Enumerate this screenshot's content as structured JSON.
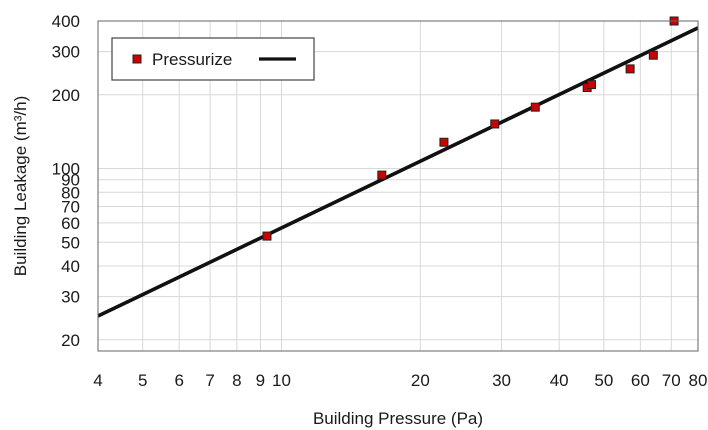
{
  "chart_data": {
    "type": "scatter",
    "title": "",
    "xlabel": "Building Pressure (Pa)",
    "ylabel": "Building Leakage (m³/h)",
    "xscale": "log",
    "yscale": "log",
    "xlim": [
      4,
      80
    ],
    "ylim": [
      18,
      400
    ],
    "grid": true,
    "legend": {
      "placement": "top-left",
      "label": "Pressurize"
    },
    "x_ticks": [
      {
        "value": 4,
        "label": "4"
      },
      {
        "value": 5,
        "label": "5"
      },
      {
        "value": 6,
        "label": "6"
      },
      {
        "value": 7,
        "label": "7"
      },
      {
        "value": 8,
        "label": "8"
      },
      {
        "value": 9,
        "label": "9"
      },
      {
        "value": 10,
        "label": "10"
      },
      {
        "value": 20,
        "label": "20"
      },
      {
        "value": 30,
        "label": "30"
      },
      {
        "value": 40,
        "label": "40"
      },
      {
        "value": 50,
        "label": "50"
      },
      {
        "value": 60,
        "label": "60"
      },
      {
        "value": 70,
        "label": "70"
      },
      {
        "value": 80,
        "label": "80"
      }
    ],
    "y_ticks": [
      {
        "value": 20,
        "label": "20"
      },
      {
        "value": 30,
        "label": "30"
      },
      {
        "value": 40,
        "label": "40"
      },
      {
        "value": 50,
        "label": "50"
      },
      {
        "value": 60,
        "label": "60"
      },
      {
        "value": 70,
        "label": "70"
      },
      {
        "value": 80,
        "label": "80"
      },
      {
        "value": 90,
        "label": "90"
      },
      {
        "value": 100,
        "label": "100"
      },
      {
        "value": 200,
        "label": "200"
      },
      {
        "value": 300,
        "label": "300"
      },
      {
        "value": 400,
        "label": "400"
      }
    ],
    "series": [
      {
        "name": "Pressurize",
        "marker": "square",
        "color": "#cc0000",
        "x": [
          9.3,
          16.5,
          22.5,
          29,
          35.5,
          46,
          47,
          57,
          64,
          71
        ],
        "y": [
          53,
          94,
          128,
          152,
          178,
          214,
          220,
          255,
          290,
          400
        ]
      }
    ],
    "fit_line": {
      "color": "#111111",
      "x": [
        4,
        80
      ],
      "y": [
        25,
        375
      ]
    }
  }
}
